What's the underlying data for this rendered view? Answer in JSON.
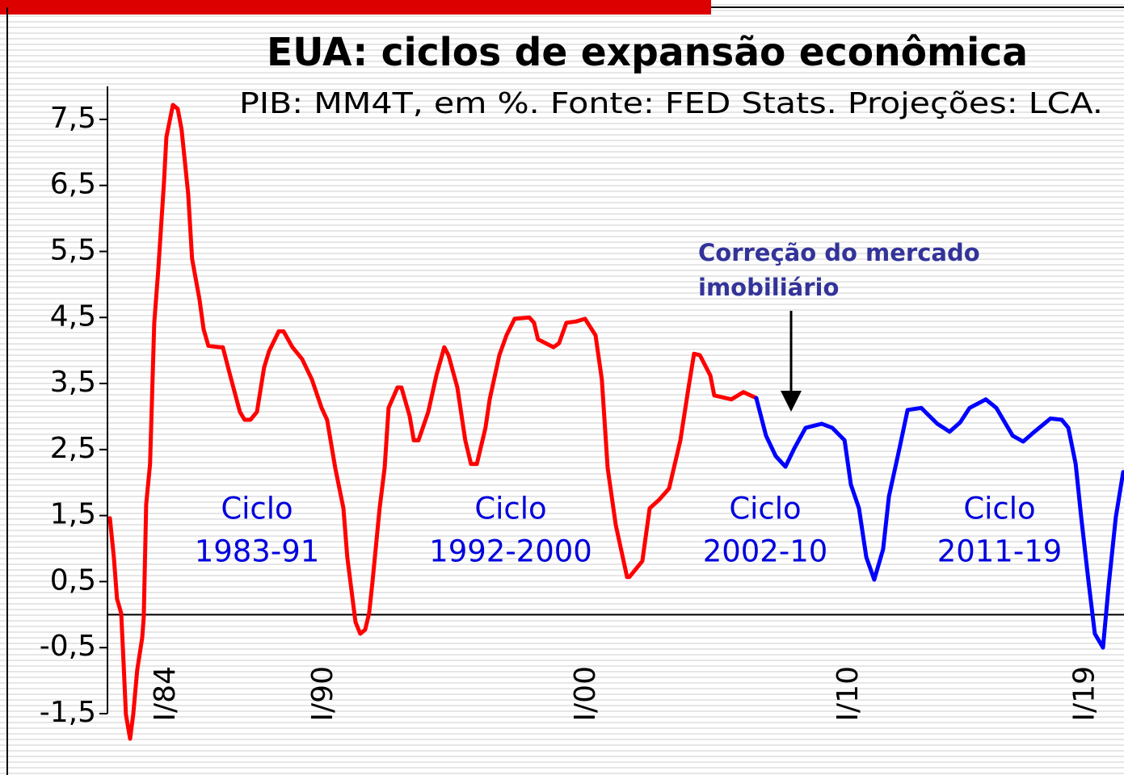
{
  "chart_data": {
    "type": "line",
    "title": "EUA: ciclos de expansão econômica",
    "subtitle": "PIB: MM4T, em %. Fonte: FED Stats. Projeções: LCA.",
    "xlim": [
      1981.85,
      2020.46
    ],
    "ylim": [
      -1.5,
      8.0
    ],
    "xticks": [
      {
        "value": 1984,
        "label": "I/84"
      },
      {
        "value": 1990,
        "label": "I/90"
      },
      {
        "value": 2000,
        "label": "I/00"
      },
      {
        "value": 2010,
        "label": "I/10"
      },
      {
        "value": 2019,
        "label": "I/19"
      }
    ],
    "yticks": [
      {
        "value": 7.5,
        "label": "7,5"
      },
      {
        "value": 6.5,
        "label": "6,5"
      },
      {
        "value": 5.5,
        "label": "5,5"
      },
      {
        "value": 4.5,
        "label": "4,5"
      },
      {
        "value": 3.5,
        "label": "3,5"
      },
      {
        "value": 2.5,
        "label": "2,5"
      },
      {
        "value": 1.5,
        "label": "1,5"
      },
      {
        "value": 0.5,
        "label": "0,5"
      },
      {
        "value": -0.5,
        "label": "-0,5"
      },
      {
        "value": -1.5,
        "label": "-1,5"
      }
    ],
    "series": [
      {
        "color": "#ff0000",
        "x": [
          1981.85,
          1982.0,
          1982.12,
          1982.28,
          1982.37,
          1982.46,
          1982.62,
          1982.74,
          1982.89,
          1983.08,
          1983.14,
          1983.23,
          1983.38,
          1983.54,
          1983.69,
          1983.91,
          1984.0,
          1984.25,
          1984.43,
          1984.58,
          1984.83,
          1984.98,
          1985.26,
          1985.42,
          1985.6,
          1986.03,
          1986.15,
          1986.43,
          1986.8,
          1986.98,
          1987.2,
          1987.45,
          1987.72,
          1987.91,
          1988.28,
          1988.46,
          1988.8,
          1989.17,
          1989.54,
          1989.91,
          1990.12,
          1990.43,
          1990.74,
          1990.89,
          1991.2,
          1991.38,
          1991.57,
          1991.72,
          1991.85,
          1992.12,
          1992.31,
          1992.46,
          1992.8,
          1992.95,
          1993.26,
          1993.42,
          1993.6,
          1993.97,
          1994.28,
          1994.58,
          1994.74,
          1995.08,
          1995.38,
          1995.6,
          1995.82,
          1996.15,
          1996.31,
          1996.68,
          1996.95,
          1997.26,
          1997.82,
          1998.0,
          1998.15,
          1998.74,
          1998.95,
          1999.23,
          1999.6,
          1999.94,
          2000.34,
          2000.58,
          2000.8,
          2001.11,
          2001.54,
          2001.63,
          2002.12,
          2002.4,
          2002.74,
          2003.14,
          2003.57,
          2003.88,
          2004.09,
          2004.31,
          2004.71,
          2004.86,
          2005.51,
          2005.97,
          2006.46
        ],
        "values": [
          1.46,
          0.87,
          0.24,
          0.02,
          -0.72,
          -1.51,
          -1.88,
          -1.51,
          -0.84,
          -0.35,
          -0.04,
          1.67,
          2.28,
          4.42,
          5.21,
          6.56,
          7.23,
          7.72,
          7.66,
          7.35,
          6.37,
          5.39,
          4.78,
          4.32,
          4.07,
          4.05,
          4.05,
          3.62,
          3.07,
          2.95,
          2.95,
          3.07,
          3.74,
          3.99,
          4.29,
          4.29,
          4.05,
          3.87,
          3.56,
          3.13,
          2.95,
          2.22,
          1.61,
          0.87,
          -0.11,
          -0.29,
          -0.23,
          0.02,
          0.5,
          1.61,
          2.22,
          3.13,
          3.44,
          3.44,
          3.01,
          2.64,
          2.64,
          3.07,
          3.62,
          4.05,
          3.93,
          3.44,
          2.64,
          2.28,
          2.28,
          2.83,
          3.26,
          3.93,
          4.23,
          4.48,
          4.5,
          4.42,
          4.17,
          4.05,
          4.11,
          4.42,
          4.44,
          4.48,
          4.23,
          3.56,
          2.22,
          1.36,
          0.57,
          0.57,
          0.81,
          1.61,
          1.73,
          1.91,
          2.64,
          3.44,
          3.95,
          3.93,
          3.62,
          3.32,
          3.26,
          3.37,
          3.28
        ]
      },
      {
        "color": "#0000ff",
        "x": [
          2006.46,
          2006.83,
          2007.2,
          2007.57,
          2007.91,
          2008.34,
          2008.95,
          2009.35,
          2009.82,
          2010.06,
          2010.37,
          2010.65,
          2010.95,
          2011.29,
          2011.51,
          2011.88,
          2012.22,
          2012.74,
          2013.35,
          2013.82,
          2014.22,
          2014.58,
          2015.2,
          2015.6,
          2016.22,
          2016.62,
          2017.05,
          2017.66,
          2018.09,
          2018.34,
          2018.62,
          2018.83,
          2019.11,
          2019.35,
          2019.66,
          2019.88,
          2020.15,
          2020.43
        ],
        "values": [
          3.28,
          2.71,
          2.4,
          2.24,
          2.52,
          2.83,
          2.89,
          2.83,
          2.64,
          1.97,
          1.61,
          0.87,
          0.53,
          0.99,
          1.79,
          2.46,
          3.1,
          3.13,
          2.89,
          2.77,
          2.91,
          3.13,
          3.26,
          3.13,
          2.71,
          2.62,
          2.77,
          2.97,
          2.95,
          2.83,
          2.28,
          1.48,
          0.5,
          -0.29,
          -0.5,
          0.45,
          1.48,
          2.16
        ]
      }
    ],
    "annotations": [
      [
        "Ciclo",
        "1983-91"
      ],
      [
        "Ciclo",
        "1992-2000"
      ],
      [
        "Ciclo",
        "2002-10"
      ],
      [
        "Ciclo",
        "2011-19"
      ]
    ],
    "note": [
      "Correção do mercado",
      "imobiliário"
    ]
  }
}
